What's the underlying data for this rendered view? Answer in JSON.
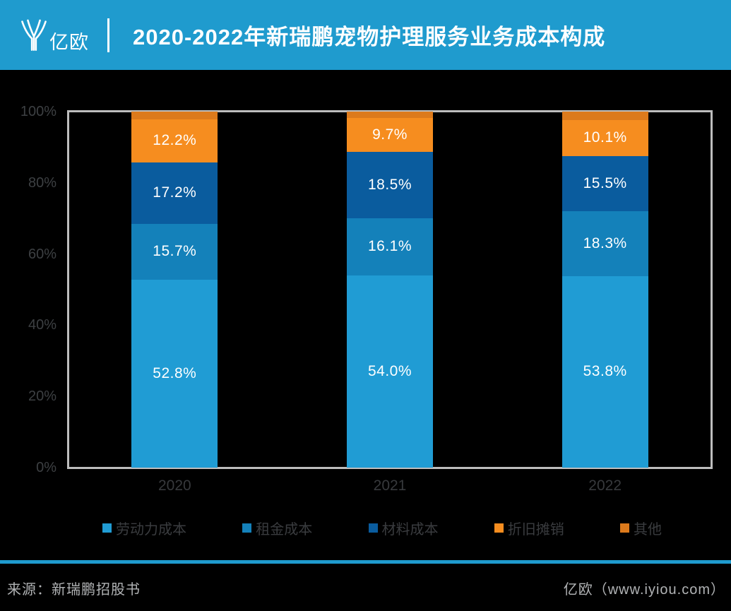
{
  "header": {
    "logo_text": "亿欧",
    "title": "2020-2022年新瑞鹏宠物护理服务业务成本构成"
  },
  "chart_data": {
    "type": "bar",
    "stacked": true,
    "title": "2020-2022年新瑞鹏宠物护理服务业务成本构成",
    "categories": [
      "2020",
      "2021",
      "2022"
    ],
    "series": [
      {
        "name": "劳动力成本",
        "color": "#209cd4",
        "values": [
          52.8,
          54.0,
          53.8
        ],
        "data_labels": [
          "52.8%",
          "54.0%",
          "53.8%"
        ],
        "labels_hidden": false
      },
      {
        "name": "租金成本",
        "color": "#1481ba",
        "values": [
          15.7,
          16.1,
          18.3
        ],
        "data_labels": [
          "15.7%",
          "16.1%",
          "18.3%"
        ],
        "labels_hidden": false
      },
      {
        "name": "材料成本",
        "color": "#0a5c9e",
        "values": [
          17.2,
          18.5,
          15.5
        ],
        "data_labels": [
          "17.2%",
          "18.5%",
          "15.5%"
        ],
        "labels_hidden": false
      },
      {
        "name": "折旧摊销",
        "color": "#f68d1f",
        "values": [
          12.2,
          9.7,
          10.1
        ],
        "data_labels": [
          "12.2%",
          "9.7%",
          "10.1%"
        ],
        "labels_hidden": false
      },
      {
        "name": "其他",
        "color": "#dc7a1c",
        "values": [
          2.1,
          1.7,
          2.3
        ],
        "data_labels": [
          "",
          "",
          ""
        ],
        "labels_hidden": true
      }
    ],
    "y_ticks": [
      "100%",
      "80%",
      "60%",
      "40%",
      "20%",
      "0%"
    ],
    "ylim": [
      0,
      100
    ],
    "grid": false,
    "legend_position": "bottom",
    "bar_label_color": "#ffffff"
  },
  "footer": {
    "source": "来源：新瑞鹏招股书",
    "credit": "亿欧（www.iyiou.com）"
  }
}
